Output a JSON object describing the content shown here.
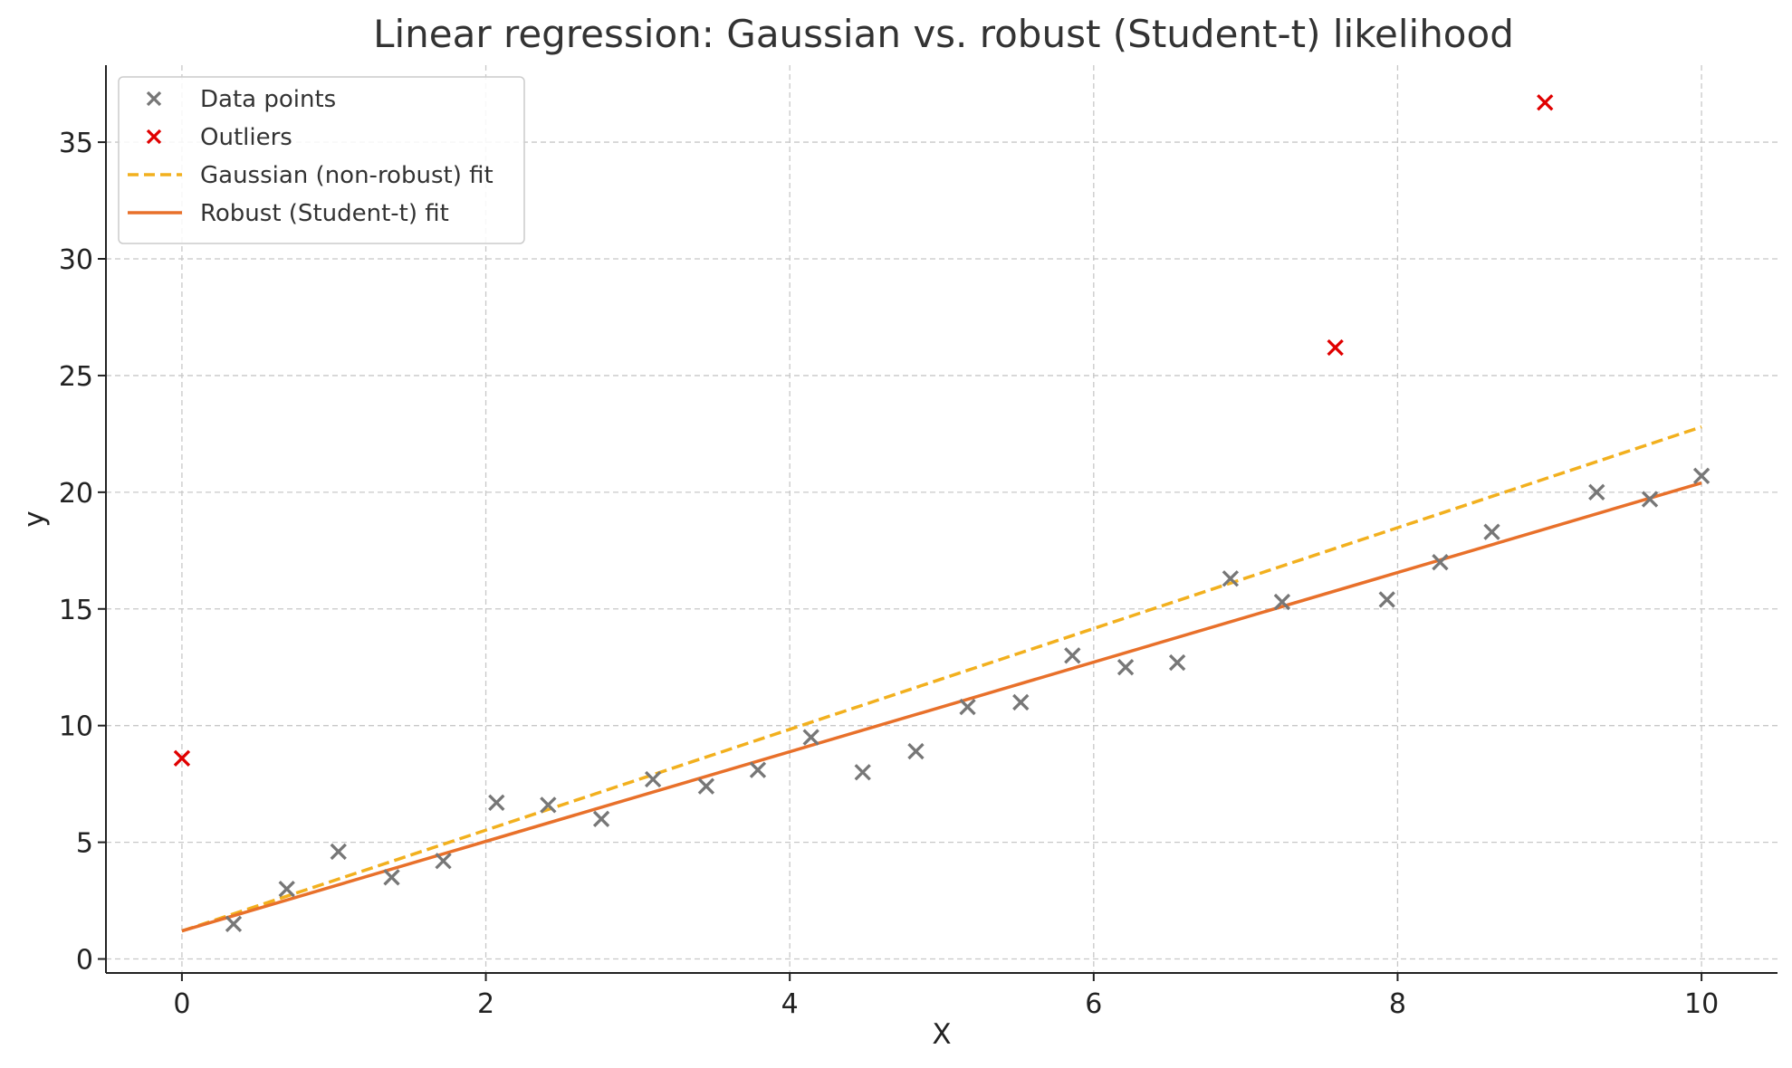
{
  "chart_data": {
    "type": "scatter",
    "title": "Linear regression: Gaussian vs. robust (Student-t) likelihood",
    "xlabel": "X",
    "ylabel": "y",
    "xlim": [
      -0.5,
      10.5
    ],
    "ylim": [
      -0.6,
      38.3
    ],
    "xticks": [
      0,
      2,
      4,
      6,
      8,
      10
    ],
    "yticks": [
      0,
      5,
      10,
      15,
      20,
      25,
      30,
      35
    ],
    "grid": true,
    "legend_position": "top-left",
    "series": [
      {
        "name": "Data points",
        "kind": "scatter",
        "marker": "x",
        "color": "#777777",
        "points": [
          {
            "x": 0.34,
            "y": 1.5
          },
          {
            "x": 0.69,
            "y": 3.0
          },
          {
            "x": 1.03,
            "y": 4.6
          },
          {
            "x": 1.38,
            "y": 3.5
          },
          {
            "x": 1.72,
            "y": 4.2
          },
          {
            "x": 2.07,
            "y": 6.7
          },
          {
            "x": 2.41,
            "y": 6.6
          },
          {
            "x": 2.76,
            "y": 6.0
          },
          {
            "x": 3.1,
            "y": 7.7
          },
          {
            "x": 3.45,
            "y": 7.4
          },
          {
            "x": 3.79,
            "y": 8.1
          },
          {
            "x": 4.14,
            "y": 9.5
          },
          {
            "x": 4.48,
            "y": 8.0
          },
          {
            "x": 4.83,
            "y": 8.9
          },
          {
            "x": 5.17,
            "y": 10.8
          },
          {
            "x": 5.52,
            "y": 11.0
          },
          {
            "x": 5.86,
            "y": 13.0
          },
          {
            "x": 6.21,
            "y": 12.5
          },
          {
            "x": 6.55,
            "y": 12.7
          },
          {
            "x": 6.9,
            "y": 16.3
          },
          {
            "x": 7.24,
            "y": 15.3
          },
          {
            "x": 7.93,
            "y": 15.4
          },
          {
            "x": 8.28,
            "y": 17.0
          },
          {
            "x": 8.62,
            "y": 18.3
          },
          {
            "x": 9.31,
            "y": 20.0
          },
          {
            "x": 9.66,
            "y": 19.7
          },
          {
            "x": 10.0,
            "y": 20.7
          }
        ]
      },
      {
        "name": "Outliers",
        "kind": "scatter",
        "marker": "x",
        "color": "#e00000",
        "points": [
          {
            "x": 0.0,
            "y": 8.6
          },
          {
            "x": 7.59,
            "y": 26.2
          },
          {
            "x": 8.97,
            "y": 36.7
          }
        ]
      },
      {
        "name": "Gaussian (non-robust) fit",
        "kind": "line",
        "style": "dashed",
        "color": "#f2b01e",
        "points": [
          {
            "x": 0.0,
            "y": 1.2
          },
          {
            "x": 10.0,
            "y": 22.8
          }
        ]
      },
      {
        "name": "Robust (Student-t) fit",
        "kind": "line",
        "style": "solid",
        "color": "#e8702a",
        "points": [
          {
            "x": 0.0,
            "y": 1.2
          },
          {
            "x": 10.0,
            "y": 20.4
          }
        ]
      }
    ]
  }
}
